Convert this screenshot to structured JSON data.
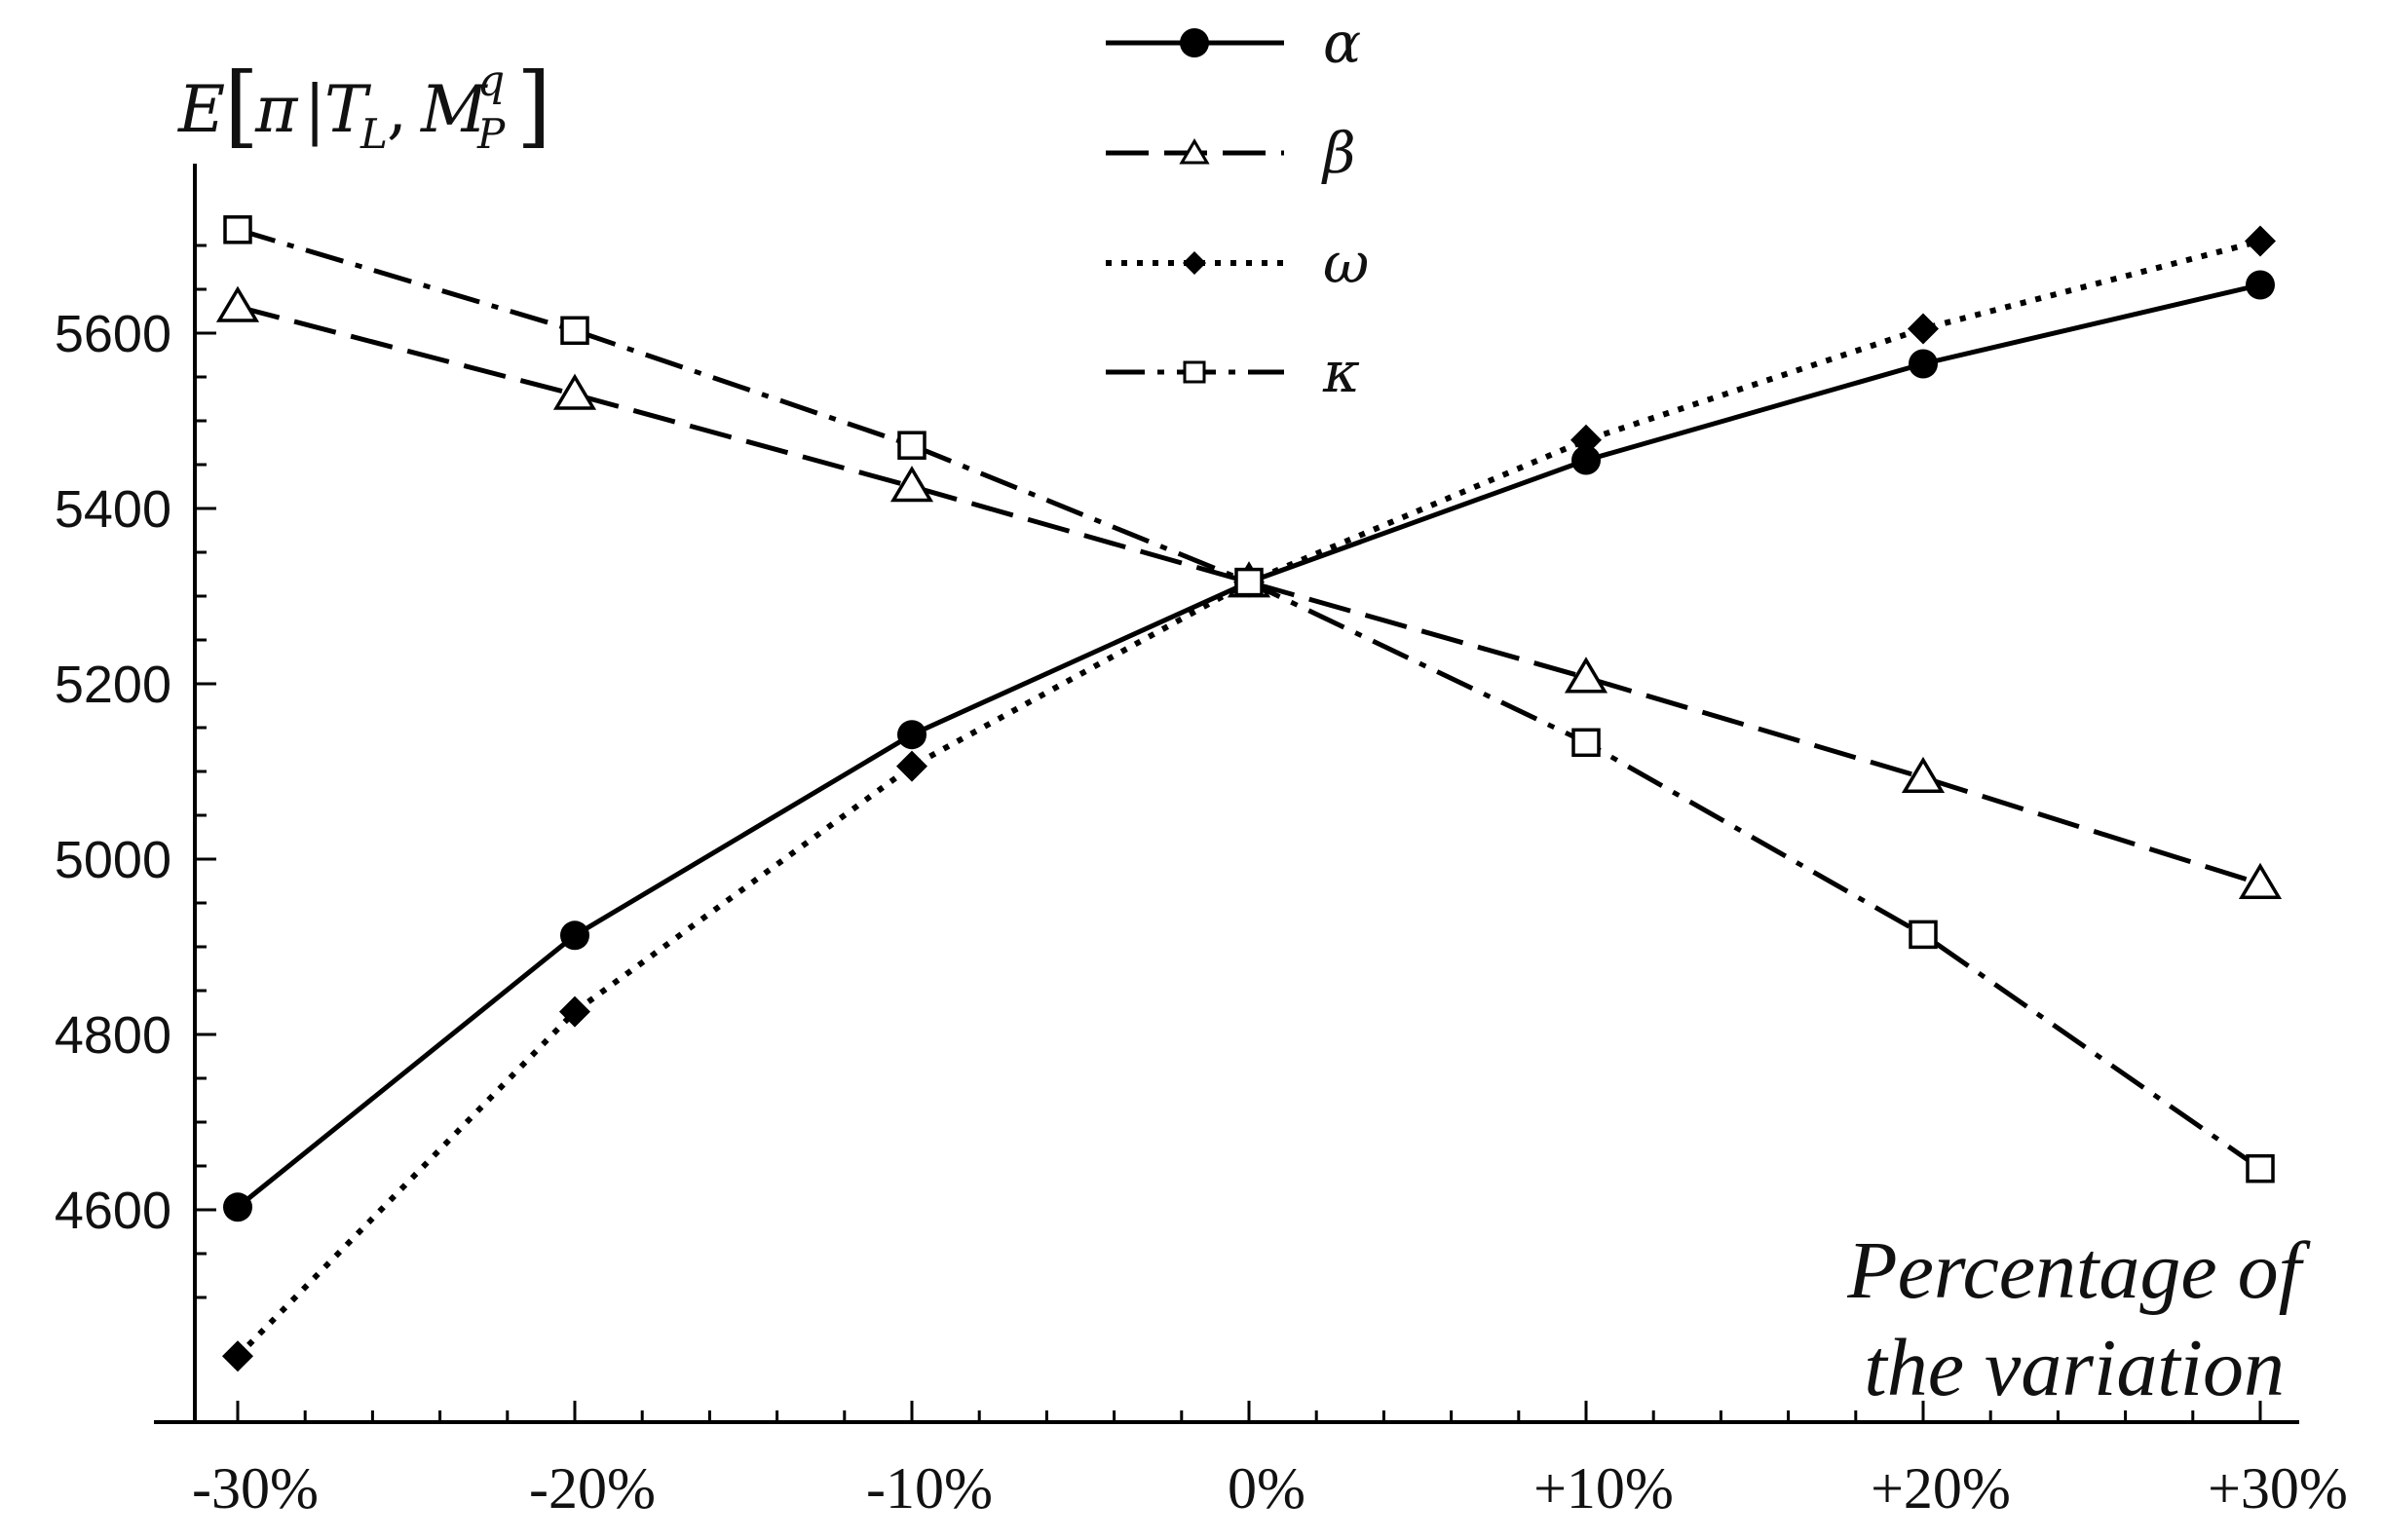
{
  "chart_data": {
    "type": "line",
    "categories": [
      "-30%",
      "-20%",
      "-10%",
      "0%",
      "+10%",
      "+20%",
      "+30%"
    ],
    "x": [
      -30,
      -20,
      -10,
      0,
      10,
      20,
      30
    ],
    "series": [
      {
        "name": "α",
        "style": "solid",
        "marker": "filled-circle",
        "values": [
          4603,
          4913,
          5142,
          5316,
          5455,
          5565,
          5655
        ]
      },
      {
        "name": "β",
        "style": "dashed",
        "marker": "open-triangle",
        "values": [
          5630,
          5530,
          5425,
          5316,
          5207,
          5093,
          4972
        ]
      },
      {
        "name": "ω",
        "style": "dotted",
        "marker": "filled-diamond",
        "values": [
          4433,
          4826,
          5106,
          5316,
          5478,
          5605,
          5705
        ]
      },
      {
        "name": "κ",
        "style": "dash-dot",
        "marker": "open-square",
        "values": [
          5718,
          5603,
          5472,
          5316,
          5133,
          4914,
          4647
        ]
      }
    ],
    "ylabel": {
      "base": "E",
      "pi": "π",
      "bar": "|",
      "T": "T",
      "T_sub": "L",
      "comma": ",",
      "M": "M",
      "M_sup": "q",
      "M_sub": "P"
    },
    "xlabel_lines": [
      "Percentage of",
      "the variation"
    ],
    "yticks": [
      4600,
      4800,
      5000,
      5200,
      5400,
      5600
    ],
    "ytick_labels": [
      "4600",
      "4800",
      "5000",
      "5200",
      "5400",
      "5600"
    ],
    "ylim": [
      4385,
      5790
    ],
    "xlim": [
      -34,
      31.5
    ],
    "legend_position": "top-center",
    "grid": false,
    "colors": {
      "line": "#000000",
      "background": "#ffffff"
    }
  }
}
